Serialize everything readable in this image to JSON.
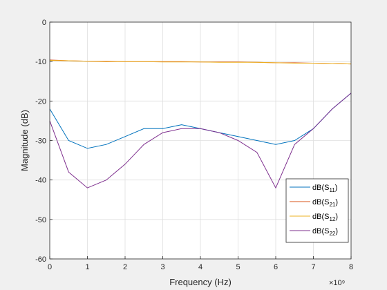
{
  "chart_data": {
    "type": "line",
    "title": "",
    "xlabel": "Frequency (Hz)",
    "ylabel": "Magnitude (dB)",
    "x_exponent": "×10⁹",
    "xlim": [
      0,
      8
    ],
    "ylim": [
      -60,
      0
    ],
    "xticks": [
      "0",
      "1",
      "2",
      "3",
      "4",
      "5",
      "6",
      "7",
      "8"
    ],
    "yticks": [
      "0",
      "-10",
      "-20",
      "-30",
      "-40",
      "-50",
      "-60"
    ],
    "grid": true,
    "legend_position": "bottom-right",
    "x": [
      0,
      0.5,
      1,
      1.5,
      2,
      2.5,
      3,
      3.5,
      4,
      4.5,
      5,
      5.5,
      6,
      6.5,
      7,
      7.5,
      8
    ],
    "series": [
      {
        "name": "dB(S11)",
        "label_base": "dB(S",
        "label_sub": "11",
        "label_close": ")",
        "color": "#0072bd",
        "values": [
          -22,
          -30,
          -32,
          -31,
          -29,
          -27,
          -27,
          -26,
          -27,
          -28,
          -29,
          -30,
          -31,
          -30,
          -27,
          -22,
          -18
        ]
      },
      {
        "name": "dB(S21)",
        "label_base": "dB(S",
        "label_sub": "21",
        "label_close": ")",
        "color": "#d95319",
        "values": [
          -9.6,
          -9.8,
          -9.9,
          -9.9,
          -10,
          -10,
          -10,
          -10,
          -10.1,
          -10.1,
          -10.1,
          -10.2,
          -10.3,
          -10.3,
          -10.4,
          -10.5,
          -10.6
        ]
      },
      {
        "name": "dB(S12)",
        "label_base": "dB(S",
        "label_sub": "12",
        "label_close": ")",
        "color": "#edb120",
        "values": [
          -9.7,
          -9.8,
          -9.9,
          -10,
          -10,
          -10,
          -10.1,
          -10.1,
          -10.1,
          -10.2,
          -10.2,
          -10.2,
          -10.3,
          -10.4,
          -10.4,
          -10.5,
          -10.6
        ]
      },
      {
        "name": "dB(S22)",
        "label_base": "dB(S",
        "label_sub": "22",
        "label_close": ")",
        "color": "#7e2f8e",
        "values": [
          -25,
          -38,
          -42,
          -40,
          -36,
          -31,
          -28,
          -27,
          -27,
          -28,
          -30,
          -33,
          -42,
          -31,
          -27,
          -22,
          -18
        ]
      }
    ]
  }
}
